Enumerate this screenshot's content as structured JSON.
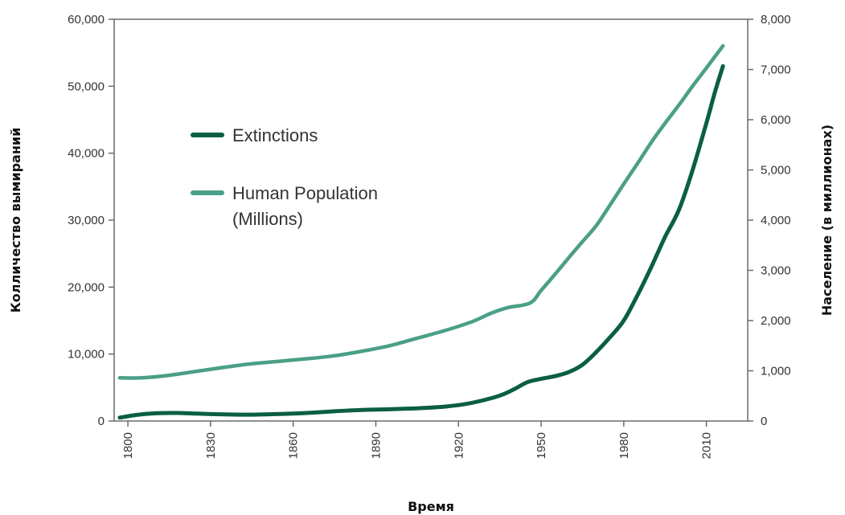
{
  "chart_data": {
    "type": "line",
    "xlabel": "Время",
    "ylabel_left": "Колличество вымираний",
    "ylabel_right": "Население (в миллионах)",
    "x_ticks": [
      1800,
      1830,
      1860,
      1890,
      1920,
      1950,
      1980,
      2010
    ],
    "y_left_ticks": [
      "0",
      "10,000",
      "20,000",
      "30,000",
      "40,000",
      "50,000",
      "60,000"
    ],
    "y_right_ticks": [
      "0",
      "1,000",
      "2,000",
      "3,000",
      "4,000",
      "5,000",
      "6,000",
      "7,000",
      "8,000"
    ],
    "xlim": [
      1795,
      2025
    ],
    "ylim_left": [
      0,
      60000
    ],
    "ylim_right": [
      0,
      8000
    ],
    "grid": false,
    "legend_position": "upper-left",
    "series": [
      {
        "name": "Extinctions",
        "axis": "left",
        "color": "#0b5e45",
        "points": [
          [
            1797,
            500
          ],
          [
            1803,
            900
          ],
          [
            1810,
            1150
          ],
          [
            1818,
            1200
          ],
          [
            1825,
            1100
          ],
          [
            1835,
            1000
          ],
          [
            1845,
            950
          ],
          [
            1855,
            1050
          ],
          [
            1865,
            1200
          ],
          [
            1875,
            1450
          ],
          [
            1885,
            1650
          ],
          [
            1895,
            1750
          ],
          [
            1905,
            1900
          ],
          [
            1915,
            2150
          ],
          [
            1922,
            2500
          ],
          [
            1928,
            3000
          ],
          [
            1935,
            3800
          ],
          [
            1940,
            4700
          ],
          [
            1945,
            5800
          ],
          [
            1950,
            6300
          ],
          [
            1955,
            6700
          ],
          [
            1960,
            7300
          ],
          [
            1965,
            8400
          ],
          [
            1970,
            10300
          ],
          [
            1975,
            12500
          ],
          [
            1980,
            15000
          ],
          [
            1985,
            18800
          ],
          [
            1990,
            23000
          ],
          [
            1995,
            27500
          ],
          [
            2000,
            31500
          ],
          [
            2005,
            37500
          ],
          [
            2010,
            44500
          ],
          [
            2013,
            49000
          ],
          [
            2016,
            53000
          ]
        ]
      },
      {
        "name": "Human Population (Millions)",
        "axis": "right",
        "color": "#4a9f87",
        "points": [
          [
            1797,
            860
          ],
          [
            1805,
            860
          ],
          [
            1815,
            910
          ],
          [
            1825,
            990
          ],
          [
            1835,
            1070
          ],
          [
            1845,
            1140
          ],
          [
            1855,
            1190
          ],
          [
            1865,
            1240
          ],
          [
            1875,
            1300
          ],
          [
            1885,
            1390
          ],
          [
            1895,
            1500
          ],
          [
            1905,
            1650
          ],
          [
            1915,
            1800
          ],
          [
            1925,
            1980
          ],
          [
            1932,
            2150
          ],
          [
            1938,
            2260
          ],
          [
            1946,
            2350
          ],
          [
            1950,
            2600
          ],
          [
            1955,
            2920
          ],
          [
            1960,
            3250
          ],
          [
            1965,
            3570
          ],
          [
            1970,
            3890
          ],
          [
            1975,
            4300
          ],
          [
            1980,
            4720
          ],
          [
            1985,
            5130
          ],
          [
            1990,
            5550
          ],
          [
            1995,
            5930
          ],
          [
            2000,
            6290
          ],
          [
            2005,
            6670
          ],
          [
            2010,
            7030
          ],
          [
            2016,
            7470
          ]
        ]
      }
    ],
    "legend": [
      {
        "label_lines": [
          "Extinctions"
        ],
        "color": "#0b5e45"
      },
      {
        "label_lines": [
          "Human Population",
          "(Millions)"
        ],
        "color": "#4a9f87"
      }
    ]
  }
}
